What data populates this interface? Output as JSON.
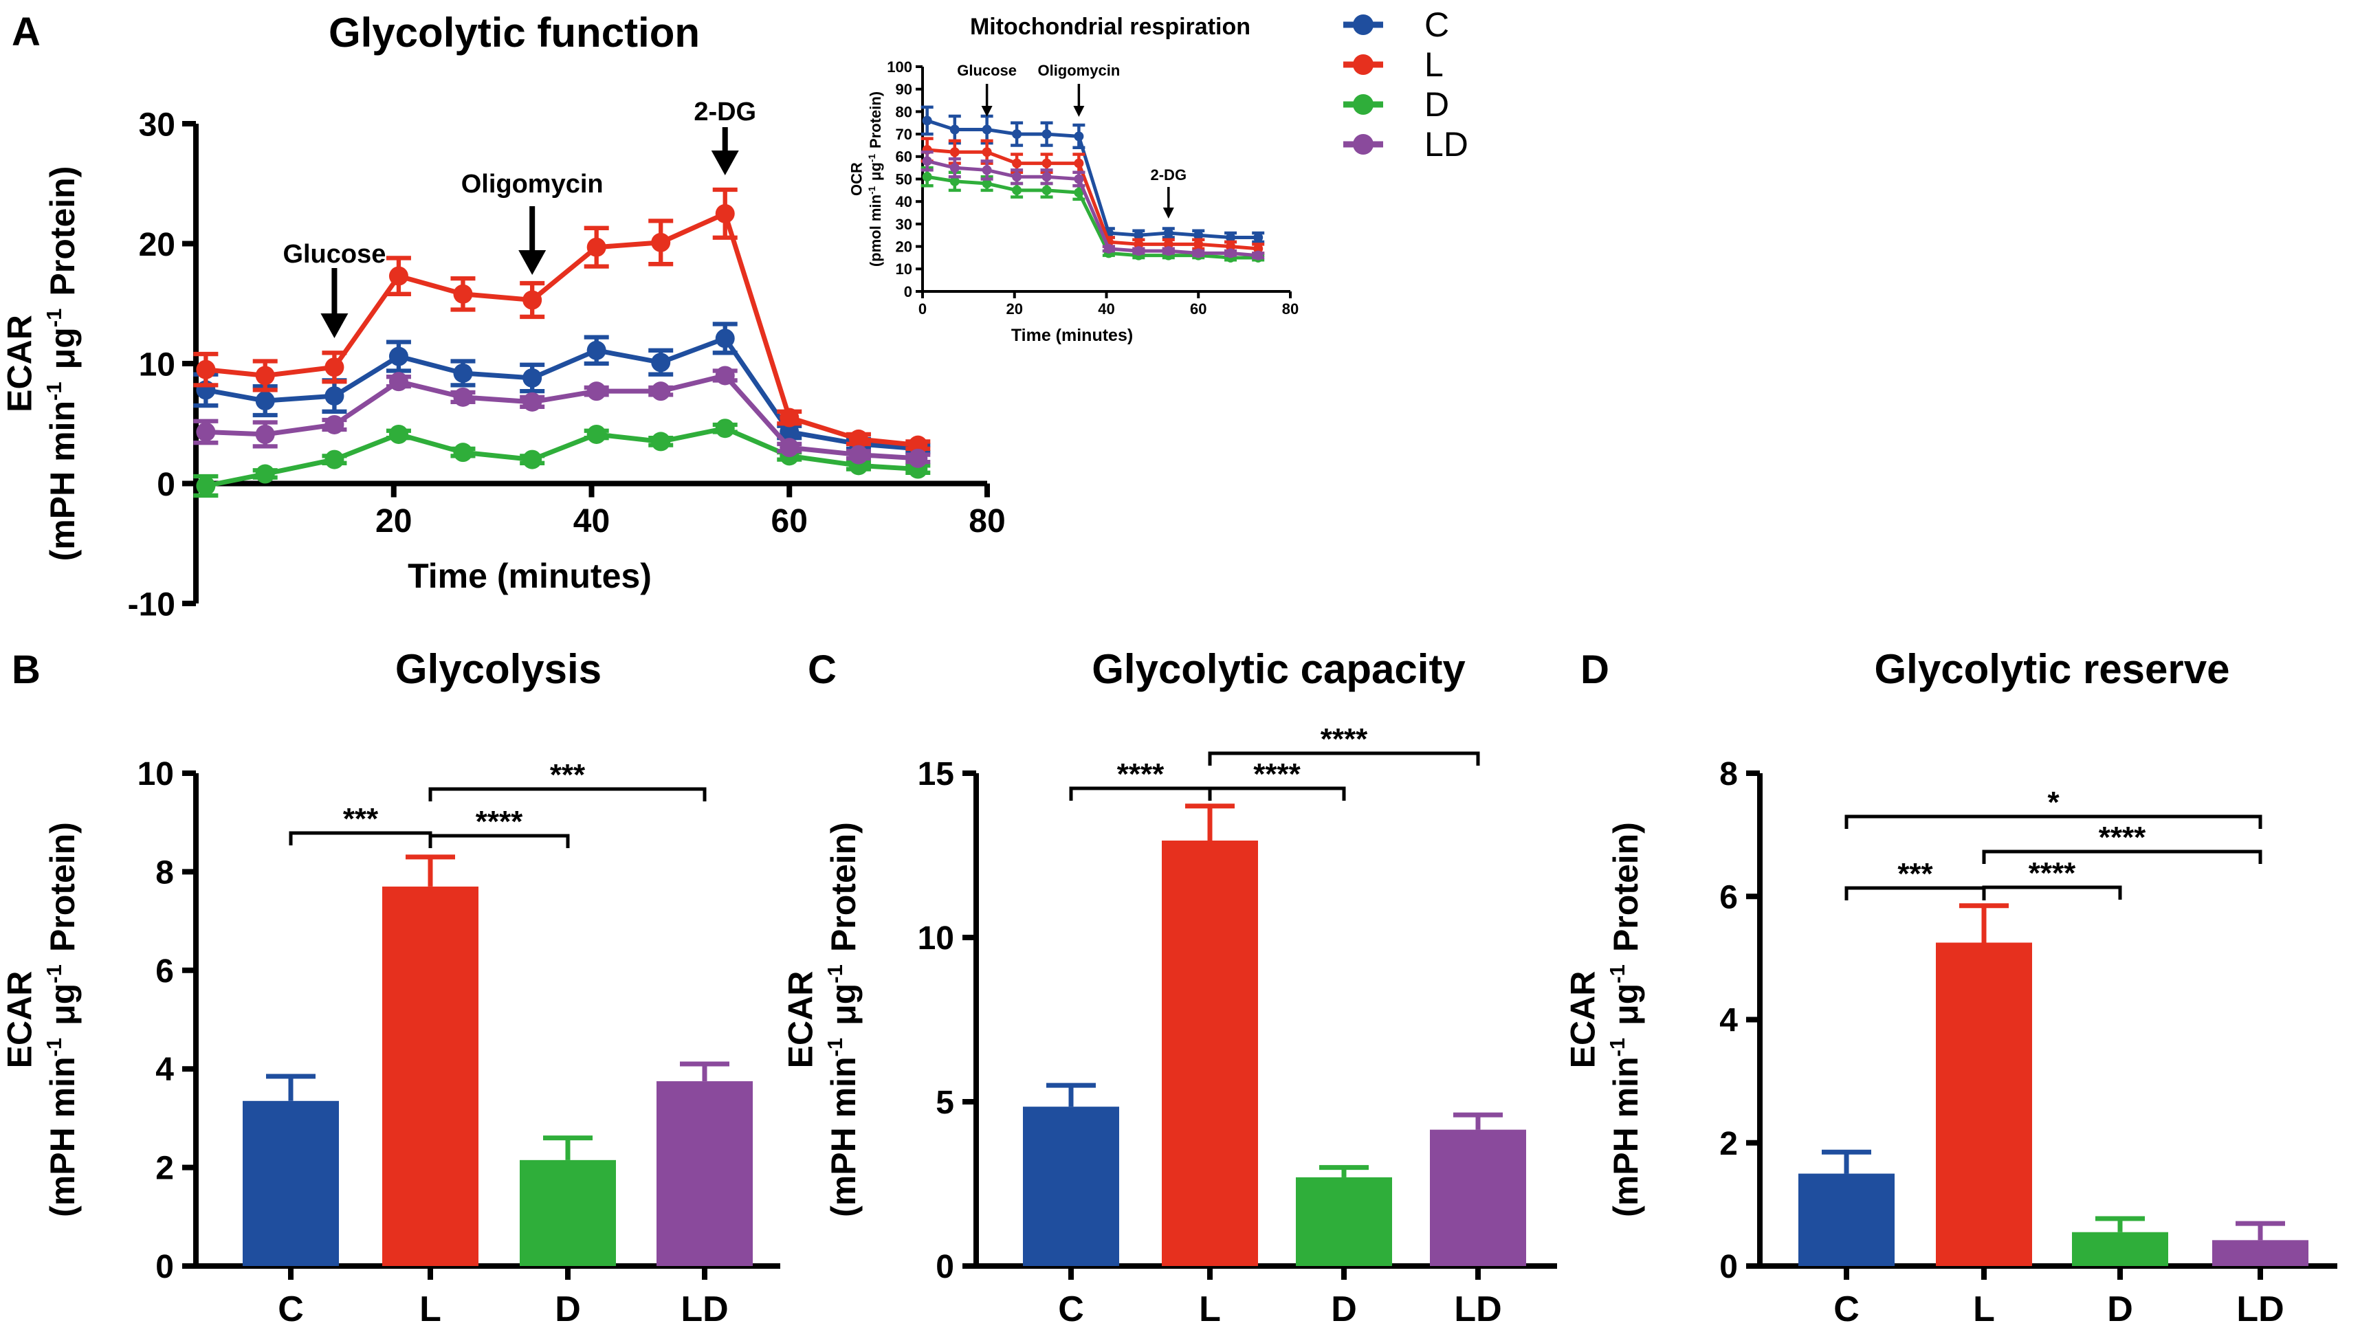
{
  "series_colors": {
    "C": "#1f4e9e",
    "L": "#e6301e",
    "D": "#2fae3a",
    "LD": "#8a4a9c"
  },
  "legend": [
    {
      "key": "C",
      "label": "C"
    },
    {
      "key": "L",
      "label": "L"
    },
    {
      "key": "D",
      "label": "D"
    },
    {
      "key": "LD",
      "label": "LD"
    }
  ],
  "chart_data": [
    {
      "id": "A",
      "panel_label": "A",
      "type": "line",
      "title": "Glycolytic function",
      "xlabel": "Time (minutes)",
      "ylabel_line1": "ECAR",
      "ylabel_line2": "(mPH min-1 μg-1 Protein)",
      "xlim": [
        0,
        80
      ],
      "ylim": [
        -10,
        30
      ],
      "xticks": [
        20,
        40,
        60,
        80
      ],
      "yticks": [
        -10,
        0,
        10,
        20,
        30
      ],
      "x": [
        1,
        7,
        14,
        20.5,
        27,
        34,
        40.5,
        47,
        53.5,
        60,
        67,
        73
      ],
      "series": [
        {
          "name": "C",
          "values": [
            7.8,
            6.9,
            7.3,
            10.6,
            9.2,
            8.8,
            11.1,
            10.1,
            12.1,
            4.3,
            3.3,
            2.9
          ],
          "errors": [
            1.3,
            1.2,
            1.3,
            1.2,
            1.0,
            1.1,
            1.1,
            1.0,
            1.2,
            0.5,
            0.4,
            0.3
          ]
        },
        {
          "name": "L",
          "values": [
            9.5,
            9.0,
            9.7,
            17.3,
            15.8,
            15.3,
            19.7,
            20.1,
            22.5,
            5.5,
            3.7,
            3.2
          ],
          "errors": [
            1.3,
            1.2,
            1.2,
            1.5,
            1.3,
            1.4,
            1.6,
            1.8,
            2.0,
            0.5,
            0.4,
            0.3
          ]
        },
        {
          "name": "D",
          "values": [
            -0.2,
            0.8,
            2.0,
            4.1,
            2.6,
            2.0,
            4.1,
            3.5,
            4.6,
            2.3,
            1.5,
            1.2
          ],
          "errors": [
            0.8,
            0.3,
            0.3,
            0.3,
            0.3,
            0.3,
            0.3,
            0.3,
            0.3,
            0.3,
            0.3,
            0.3
          ]
        },
        {
          "name": "LD",
          "values": [
            4.3,
            4.1,
            4.9,
            8.5,
            7.2,
            6.8,
            7.7,
            7.7,
            9.0,
            3.0,
            2.4,
            2.1
          ],
          "errors": [
            0.9,
            1.0,
            0.4,
            0.4,
            0.4,
            0.4,
            0.3,
            0.3,
            0.4,
            0.3,
            0.3,
            0.3
          ]
        }
      ],
      "annotations": [
        {
          "label": "Glucose",
          "x": 14
        },
        {
          "label": "Oligomycin",
          "x": 34
        },
        {
          "label": "2-DG",
          "x": 53.5
        }
      ]
    },
    {
      "id": "A_inset",
      "type": "line",
      "title": "Mitochondrial respiration",
      "xlabel": "Time (minutes)",
      "ylabel_line1": "OCR",
      "ylabel_line2": "(pmol min-1 μg-1 Protein)",
      "xlim": [
        0,
        80
      ],
      "ylim": [
        0,
        100
      ],
      "xticks": [
        0,
        20,
        40,
        60,
        80
      ],
      "yticks": [
        0,
        10,
        20,
        30,
        40,
        50,
        60,
        70,
        80,
        90,
        100
      ],
      "x": [
        1,
        7,
        14,
        20.5,
        27,
        34,
        40.5,
        47,
        53.5,
        60,
        67,
        73
      ],
      "series": [
        {
          "name": "C",
          "values": [
            76,
            72,
            72,
            70,
            70,
            69,
            26,
            25,
            26,
            25,
            24,
            24
          ],
          "errors": [
            6,
            6,
            6,
            5,
            5,
            5,
            2,
            2,
            2,
            2,
            2,
            2
          ]
        },
        {
          "name": "L",
          "values": [
            63,
            62,
            62,
            57,
            57,
            57,
            22,
            21,
            21,
            21,
            20,
            19
          ],
          "errors": [
            5,
            5,
            5,
            4,
            4,
            4,
            2,
            2,
            2,
            2,
            2,
            2
          ]
        },
        {
          "name": "D",
          "values": [
            51,
            49,
            48,
            45,
            45,
            44,
            17,
            16,
            16,
            16,
            15,
            15
          ],
          "errors": [
            4,
            4,
            3,
            3,
            3,
            3,
            1,
            1,
            1,
            1,
            1,
            1
          ]
        },
        {
          "name": "LD",
          "values": [
            58,
            55,
            54,
            51,
            51,
            50,
            19,
            18,
            18,
            17,
            17,
            16
          ],
          "errors": [
            4,
            4,
            4,
            3,
            3,
            3,
            1,
            1,
            1,
            1,
            1,
            1
          ]
        }
      ],
      "annotations": [
        {
          "label": "Glucose",
          "x": 14
        },
        {
          "label": "Oligomycin",
          "x": 34
        },
        {
          "label": "2-DG",
          "x": 53.5
        }
      ]
    },
    {
      "id": "B",
      "panel_label": "B",
      "type": "bar",
      "title": "Glycolysis",
      "ylabel_line1": "ECAR",
      "ylabel_line2": "(mPH min-1 μg-1 Protein)",
      "categories": [
        "C",
        "L",
        "D",
        "LD"
      ],
      "values": [
        3.35,
        7.7,
        2.15,
        3.75
      ],
      "errors": [
        0.5,
        0.6,
        0.45,
        0.35
      ],
      "ylim": [
        0,
        10
      ],
      "yticks": [
        0,
        2,
        4,
        6,
        8,
        10
      ],
      "significance": [
        {
          "from": 0,
          "to": 1,
          "label": "***"
        },
        {
          "from": 1,
          "to": 2,
          "label": "****"
        },
        {
          "from": 1,
          "to": 3,
          "label": "***"
        }
      ]
    },
    {
      "id": "C",
      "panel_label": "C",
      "type": "bar",
      "title": "Glycolytic capacity",
      "ylabel_line1": "ECAR",
      "ylabel_line2": "(mPH min-1 μg-1 Protein)",
      "categories": [
        "C",
        "L",
        "D",
        "LD"
      ],
      "values": [
        4.85,
        12.95,
        2.7,
        4.15
      ],
      "errors": [
        0.65,
        1.05,
        0.3,
        0.45
      ],
      "ylim": [
        0,
        15
      ],
      "yticks": [
        0,
        5,
        10,
        15
      ],
      "significance": [
        {
          "from": 0,
          "to": 1,
          "label": "****"
        },
        {
          "from": 1,
          "to": 2,
          "label": "****"
        },
        {
          "from": 1,
          "to": 3,
          "label": "****"
        }
      ]
    },
    {
      "id": "D",
      "panel_label": "D",
      "type": "bar",
      "title": "Glycolytic reserve",
      "ylabel_line1": "ECAR",
      "ylabel_line2": "(mPH min-1 μg-1 Protein)",
      "categories": [
        "C",
        "L",
        "D",
        "LD"
      ],
      "values": [
        1.5,
        5.25,
        0.55,
        0.42
      ],
      "errors": [
        0.35,
        0.6,
        0.22,
        0.27
      ],
      "ylim": [
        0,
        8
      ],
      "yticks": [
        0,
        2,
        4,
        6,
        8
      ],
      "significance": [
        {
          "from": 0,
          "to": 1,
          "label": "***"
        },
        {
          "from": 1,
          "to": 2,
          "label": "****"
        },
        {
          "from": 1,
          "to": 3,
          "label": "****"
        },
        {
          "from": 0,
          "to": 3,
          "label": "*"
        }
      ]
    }
  ]
}
